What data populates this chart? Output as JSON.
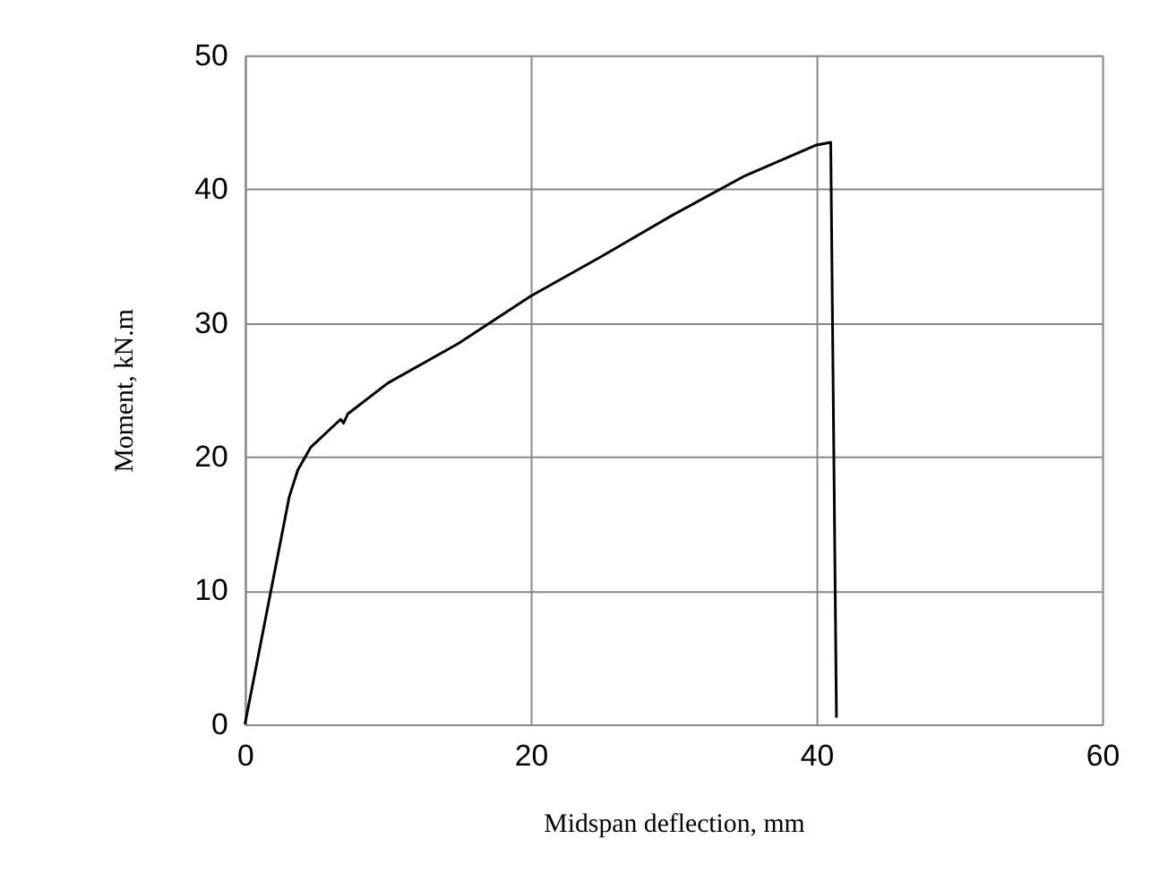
{
  "chart_data": {
    "type": "line",
    "xlabel": "Midspan deflection, mm",
    "ylabel": "Moment, kN.m",
    "xlim": [
      0,
      60
    ],
    "ylim": [
      0,
      50
    ],
    "xticks": [
      0,
      20,
      40,
      60
    ],
    "yticks": [
      0,
      10,
      20,
      30,
      40,
      50
    ],
    "grid": true,
    "marker": "none",
    "line_style": "solid",
    "series": [
      {
        "color": "#000000",
        "x": [
          0,
          3.1,
          3.7,
          4.6,
          6.7,
          6.9,
          7.2,
          10,
          15,
          20,
          25,
          30,
          35,
          40,
          40.5,
          41,
          41.4
        ],
        "values": [
          0,
          17,
          19,
          20.7,
          22.8,
          22.5,
          23.2,
          25.5,
          28.5,
          32,
          35,
          38.1,
          41,
          43.3,
          43.4,
          43.5,
          0.5
        ]
      }
    ]
  }
}
